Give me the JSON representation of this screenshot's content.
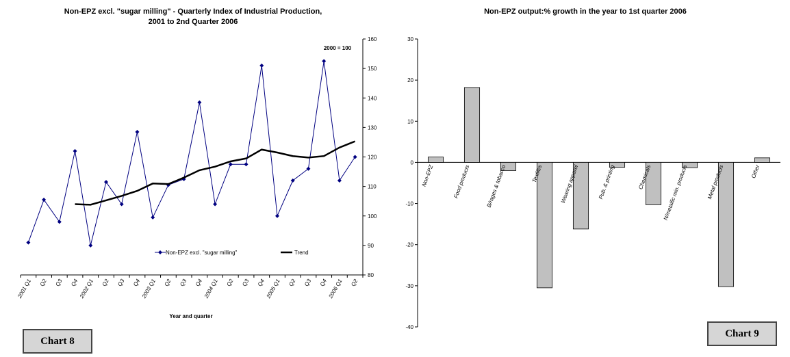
{
  "chart_data": [
    {
      "type": "line",
      "title": "Non-EPZ excl. \"sugar milling\" - Quarterly Index of Industrial Production,",
      "subtitle": "2001 to 2nd Quarter 2006",
      "xlabel": "Year and quarter",
      "ylabel": "",
      "annotation": "2000 = 100",
      "y_axis_side": "right",
      "ylim": [
        80,
        160
      ],
      "yticks": [
        80,
        90,
        100,
        110,
        120,
        130,
        140,
        150,
        160
      ],
      "categories": [
        "2001 Q1",
        "Q2",
        "Q3",
        "Q4",
        "2002 Q1",
        "Q2",
        "Q3",
        "Q4",
        "2003 Q1",
        "Q2",
        "Q3",
        "Q4",
        "2004 Q1",
        "Q2",
        "Q3",
        "Q4",
        "2005 Q1",
        "Q2",
        "Q3",
        "Q4",
        "2006 Q1",
        "Q2"
      ],
      "legend_position": "bottom",
      "series": [
        {
          "name": "Non-EPZ excl. \"sugar milling\"",
          "color": "#000080",
          "marker": "diamond",
          "values": [
            91,
            105.5,
            98,
            122,
            90,
            111.5,
            104,
            128.5,
            99.5,
            110.5,
            112.5,
            138.5,
            104,
            117.5,
            117.5,
            151,
            100,
            112,
            116,
            152.5,
            112,
            120
          ]
        },
        {
          "name": "Trend",
          "color": "#000000",
          "marker": "none",
          "values": [
            null,
            null,
            null,
            104,
            103.8,
            105.3,
            106.8,
            108.5,
            111,
            110.8,
            113,
            115.5,
            116.7,
            118.5,
            119.5,
            122.5,
            121.5,
            120.3,
            119.8,
            120.3,
            123.2,
            125.3
          ]
        }
      ]
    },
    {
      "type": "bar",
      "title": "Non-EPZ output:% growth in the year to 1st quarter 2006",
      "xlabel": "",
      "ylabel": "",
      "ylim": [
        -40,
        30
      ],
      "yticks": [
        -40,
        -30,
        -20,
        -10,
        0,
        10,
        20,
        30
      ],
      "bar_color": "#c0c0c0",
      "categories": [
        "Non-EPZ",
        "Food products",
        "B/rages & tobacco",
        "Textiles",
        "Wearing apparel",
        "Pub. & printing",
        "Chemicals",
        "N/metallic min. products",
        "Metal products",
        "Other"
      ],
      "values": [
        1.3,
        18.2,
        -2,
        -30.5,
        -16.2,
        -1.2,
        -10.3,
        -1.3,
        -30.2,
        1.1
      ]
    }
  ],
  "labels": {
    "chart8": "Chart 8",
    "chart9": "Chart 9"
  }
}
